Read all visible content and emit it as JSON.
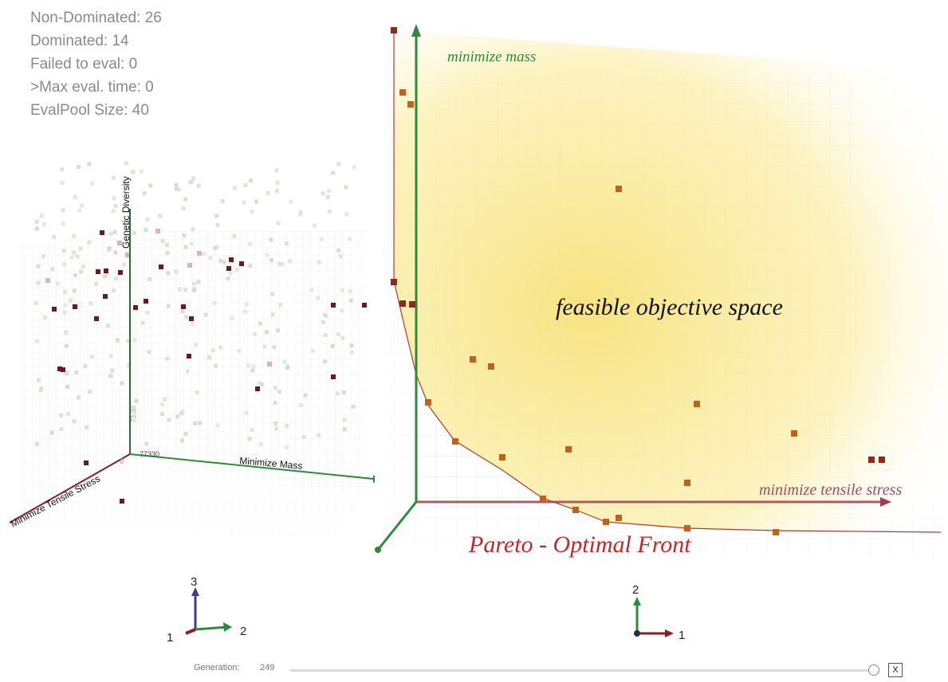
{
  "stats": {
    "non_dominated": "Non-Dominated: 26",
    "dominated": "Dominated: 14",
    "failed": "Failed to eval: 0",
    "max_eval_time": ">Max eval. time: 0",
    "eval_pool": "EvalPool Size: 40"
  },
  "left_plot": {
    "axis_z_label": "Genetic Diversity",
    "axis_x_label": "Minimize Mass",
    "axis_y_label": "Minimize Tensile Stress",
    "tick_origin": "77330",
    "tick_small": "0",
    "tick_z": "73.00"
  },
  "right_plot": {
    "axis_y_label": "minimize mass",
    "axis_x_label": "minimize tensile stress",
    "region_label": "feasible objective space",
    "front_label": "Pareto - Optimal Front"
  },
  "gizmo_left": {
    "z": "3",
    "x": "1",
    "y": "2"
  },
  "gizmo_right": {
    "y": "2",
    "x": "1"
  },
  "generation": {
    "label": "Generation:",
    "value": "249",
    "fraction": 0.99,
    "close_label": "X"
  },
  "colors": {
    "dominated_point": "#6b1a1a",
    "ghost_point": "#d9d6cc",
    "pink_point": "#d8a9b5",
    "pareto_point": "#c0621a",
    "front_line": "#b03a3a",
    "yellow": "#f7e27a",
    "mass_axis": "#2e8a3c",
    "stress_axis": "#a0404a"
  }
}
